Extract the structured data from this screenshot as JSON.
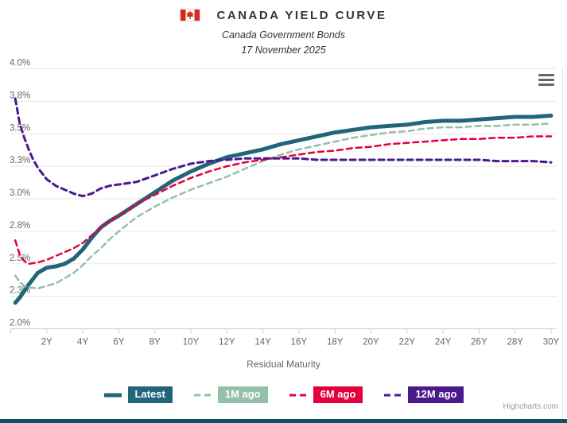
{
  "header": {
    "title": "CANADA YIELD CURVE",
    "subtitle1": "Canada Government Bonds",
    "subtitle2": "17 November 2025",
    "flag_icon": "canada-flag-icon",
    "flag_red": "#d52b1e"
  },
  "credits": {
    "label": "Highcharts.com"
  },
  "menu": {
    "icon": "hamburger-menu-icon"
  },
  "colors": {
    "grid": "#e6e6e6",
    "axis": "#cccccc",
    "tick_label": "#666666",
    "title_text": "#333333",
    "footer_bar": "#11506b"
  },
  "chart_data": {
    "type": "line",
    "title": "CANADA YIELD CURVE",
    "subtitle": [
      "Canada Government Bonds",
      "17 November 2025"
    ],
    "xlabel": "Residual Maturity",
    "ylabel": "",
    "xlim": [
      0,
      30.3
    ],
    "ylim": [
      2.0,
      4.0
    ],
    "grid": true,
    "legend_position": "bottom",
    "x_ticks": [
      {
        "v": 0,
        "label": ""
      },
      {
        "v": 2,
        "label": "2Y"
      },
      {
        "v": 4,
        "label": "4Y"
      },
      {
        "v": 6,
        "label": "6Y"
      },
      {
        "v": 8,
        "label": "8Y"
      },
      {
        "v": 10,
        "label": "10Y"
      },
      {
        "v": 12,
        "label": "12Y"
      },
      {
        "v": 14,
        "label": "14Y"
      },
      {
        "v": 16,
        "label": "16Y"
      },
      {
        "v": 18,
        "label": "18Y"
      },
      {
        "v": 20,
        "label": "20Y"
      },
      {
        "v": 22,
        "label": "22Y"
      },
      {
        "v": 24,
        "label": "24Y"
      },
      {
        "v": 26,
        "label": "26Y"
      },
      {
        "v": 28,
        "label": "28Y"
      },
      {
        "v": 30,
        "label": "30Y"
      }
    ],
    "y_ticks": [
      {
        "v": 2.0,
        "label": "2.0%"
      },
      {
        "v": 2.25,
        "label": "2.3%"
      },
      {
        "v": 2.5,
        "label": "2.5%"
      },
      {
        "v": 2.75,
        "label": "2.8%"
      },
      {
        "v": 3.0,
        "label": "3.0%"
      },
      {
        "v": 3.25,
        "label": "3.3%"
      },
      {
        "v": 3.5,
        "label": "3.5%"
      },
      {
        "v": 3.75,
        "label": "3.8%"
      },
      {
        "v": 4.0,
        "label": "4.0%"
      }
    ],
    "series": [
      {
        "name": "Latest",
        "color": "#21657a",
        "style": "solid",
        "width": 5,
        "points": [
          [
            0.25,
            2.2
          ],
          [
            0.5,
            2.24
          ],
          [
            0.75,
            2.29
          ],
          [
            1,
            2.34
          ],
          [
            1.5,
            2.43
          ],
          [
            2,
            2.47
          ],
          [
            2.5,
            2.48
          ],
          [
            3,
            2.5
          ],
          [
            3.5,
            2.54
          ],
          [
            4,
            2.61
          ],
          [
            4.5,
            2.7
          ],
          [
            5,
            2.78
          ],
          [
            5.5,
            2.83
          ],
          [
            6,
            2.87
          ],
          [
            7,
            2.96
          ],
          [
            8,
            3.05
          ],
          [
            9,
            3.14
          ],
          [
            10,
            3.21
          ],
          [
            11,
            3.27
          ],
          [
            12,
            3.32
          ],
          [
            13,
            3.35
          ],
          [
            14,
            3.38
          ],
          [
            15,
            3.42
          ],
          [
            16,
            3.45
          ],
          [
            17,
            3.48
          ],
          [
            18,
            3.51
          ],
          [
            19,
            3.53
          ],
          [
            20,
            3.55
          ],
          [
            21,
            3.56
          ],
          [
            22,
            3.57
          ],
          [
            23,
            3.59
          ],
          [
            24,
            3.6
          ],
          [
            25,
            3.6
          ],
          [
            26,
            3.61
          ],
          [
            27,
            3.62
          ],
          [
            28,
            3.63
          ],
          [
            29,
            3.63
          ],
          [
            30,
            3.64
          ]
        ]
      },
      {
        "name": "1M ago",
        "color": "#94bfa8",
        "style": "dash",
        "width": 2.5,
        "points": [
          [
            0.25,
            2.41
          ],
          [
            0.5,
            2.36
          ],
          [
            0.75,
            2.33
          ],
          [
            1,
            2.32
          ],
          [
            1.5,
            2.31
          ],
          [
            2,
            2.33
          ],
          [
            2.5,
            2.35
          ],
          [
            3,
            2.39
          ],
          [
            3.5,
            2.43
          ],
          [
            4,
            2.49
          ],
          [
            4.5,
            2.56
          ],
          [
            5,
            2.62
          ],
          [
            5.5,
            2.69
          ],
          [
            6,
            2.75
          ],
          [
            7,
            2.86
          ],
          [
            8,
            2.94
          ],
          [
            9,
            3.01
          ],
          [
            10,
            3.07
          ],
          [
            11,
            3.12
          ],
          [
            12,
            3.17
          ],
          [
            13,
            3.23
          ],
          [
            14,
            3.29
          ],
          [
            15,
            3.34
          ],
          [
            16,
            3.38
          ],
          [
            17,
            3.41
          ],
          [
            18,
            3.44
          ],
          [
            19,
            3.47
          ],
          [
            20,
            3.49
          ],
          [
            21,
            3.51
          ],
          [
            22,
            3.52
          ],
          [
            23,
            3.54
          ],
          [
            24,
            3.55
          ],
          [
            25,
            3.55
          ],
          [
            26,
            3.56
          ],
          [
            27,
            3.56
          ],
          [
            28,
            3.57
          ],
          [
            29,
            3.57
          ],
          [
            30,
            3.58
          ]
        ]
      },
      {
        "name": "6M ago",
        "color": "#e4003c",
        "style": "dash",
        "width": 2.5,
        "points": [
          [
            0.25,
            2.68
          ],
          [
            0.5,
            2.57
          ],
          [
            0.75,
            2.52
          ],
          [
            1,
            2.5
          ],
          [
            1.5,
            2.51
          ],
          [
            2,
            2.53
          ],
          [
            2.5,
            2.56
          ],
          [
            3,
            2.59
          ],
          [
            3.5,
            2.62
          ],
          [
            4,
            2.66
          ],
          [
            4.5,
            2.72
          ],
          [
            5,
            2.78
          ],
          [
            5.5,
            2.83
          ],
          [
            6,
            2.87
          ],
          [
            7,
            2.96
          ],
          [
            8,
            3.03
          ],
          [
            9,
            3.1
          ],
          [
            10,
            3.16
          ],
          [
            11,
            3.21
          ],
          [
            12,
            3.25
          ],
          [
            13,
            3.28
          ],
          [
            14,
            3.3
          ],
          [
            15,
            3.32
          ],
          [
            16,
            3.34
          ],
          [
            17,
            3.36
          ],
          [
            18,
            3.37
          ],
          [
            19,
            3.39
          ],
          [
            20,
            3.4
          ],
          [
            21,
            3.42
          ],
          [
            22,
            3.43
          ],
          [
            23,
            3.44
          ],
          [
            24,
            3.45
          ],
          [
            25,
            3.46
          ],
          [
            26,
            3.46
          ],
          [
            27,
            3.47
          ],
          [
            28,
            3.47
          ],
          [
            29,
            3.48
          ],
          [
            30,
            3.48
          ]
        ]
      },
      {
        "name": "12M ago",
        "color": "#4a1a8c",
        "style": "dash",
        "width": 3,
        "points": [
          [
            0.25,
            3.77
          ],
          [
            0.5,
            3.58
          ],
          [
            0.75,
            3.47
          ],
          [
            1,
            3.38
          ],
          [
            1.25,
            3.3
          ],
          [
            1.5,
            3.24
          ],
          [
            2,
            3.15
          ],
          [
            2.5,
            3.1
          ],
          [
            3,
            3.07
          ],
          [
            3.5,
            3.04
          ],
          [
            4,
            3.02
          ],
          [
            4.5,
            3.04
          ],
          [
            5,
            3.08
          ],
          [
            5.5,
            3.1
          ],
          [
            6,
            3.11
          ],
          [
            6.5,
            3.12
          ],
          [
            7,
            3.13
          ],
          [
            8,
            3.18
          ],
          [
            9,
            3.23
          ],
          [
            10,
            3.27
          ],
          [
            11,
            3.29
          ],
          [
            12,
            3.3
          ],
          [
            13,
            3.31
          ],
          [
            14,
            3.31
          ],
          [
            15,
            3.31
          ],
          [
            16,
            3.31
          ],
          [
            17,
            3.3
          ],
          [
            18,
            3.3
          ],
          [
            19,
            3.3
          ],
          [
            20,
            3.3
          ],
          [
            21,
            3.3
          ],
          [
            22,
            3.3
          ],
          [
            23,
            3.3
          ],
          [
            24,
            3.3
          ],
          [
            25,
            3.3
          ],
          [
            26,
            3.3
          ],
          [
            27,
            3.29
          ],
          [
            28,
            3.29
          ],
          [
            29,
            3.29
          ],
          [
            30,
            3.28
          ]
        ]
      }
    ]
  }
}
